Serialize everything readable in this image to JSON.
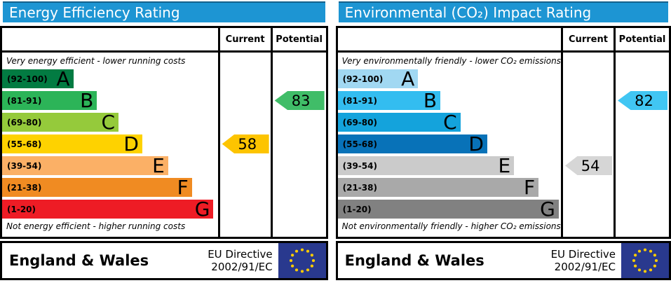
{
  "colors": {
    "header_bar": "#1d95d3",
    "border": "#000000",
    "eu_flag_blue": "#29398e",
    "eu_flag_stars": "#ffcc00"
  },
  "panels": [
    {
      "title": "Energy Efficiency Rating",
      "columns": {
        "current": "Current",
        "potential": "Potential"
      },
      "top_caption": "Very energy efficient - lower running costs",
      "bottom_caption": "Not energy efficient - higher running costs",
      "bands": [
        {
          "range": "(92-100)",
          "letter": "A",
          "width": "33%",
          "color": "#027b42"
        },
        {
          "range": "(81-91)",
          "letter": "B",
          "width": "44%",
          "color": "#2cb458"
        },
        {
          "range": "(69-80)",
          "letter": "C",
          "width": "54%",
          "color": "#95ca3b"
        },
        {
          "range": "(55-68)",
          "letter": "D",
          "width": "65%",
          "color": "#fed200"
        },
        {
          "range": "(39-54)",
          "letter": "E",
          "width": "77%",
          "color": "#fbb066"
        },
        {
          "range": "(21-38)",
          "letter": "F",
          "width": "88%",
          "color": "#f08b22"
        },
        {
          "range": "(1-20)",
          "letter": "G",
          "width": "98%",
          "color": "#ee1c25"
        }
      ],
      "current": {
        "value": "58",
        "band_index": 3,
        "color": "#fdc400"
      },
      "potential": {
        "value": "83",
        "band_index": 1,
        "color": "#40bd68"
      },
      "footer": {
        "region": "England & Wales",
        "directive_line1": "EU Directive",
        "directive_line2": "2002/91/EC"
      }
    },
    {
      "title": "Environmental (CO₂) Impact Rating",
      "columns": {
        "current": "Current",
        "potential": "Potential"
      },
      "top_caption": "Very environmentally friendly - lower CO₂ emissions",
      "bottom_caption": "Not environmentally friendly - higher CO₂ emissions",
      "bands": [
        {
          "range": "(92-100)",
          "letter": "A",
          "width": "36%",
          "color": "#a1d8f2"
        },
        {
          "range": "(81-91)",
          "letter": "B",
          "width": "46%",
          "color": "#33bdf0"
        },
        {
          "range": "(69-80)",
          "letter": "C",
          "width": "55%",
          "color": "#14a3dc"
        },
        {
          "range": "(55-68)",
          "letter": "D",
          "width": "67%",
          "color": "#0872b8"
        },
        {
          "range": "(39-54)",
          "letter": "E",
          "width": "79%",
          "color": "#cbcbcb"
        },
        {
          "range": "(21-38)",
          "letter": "F",
          "width": "90%",
          "color": "#a9a9a9"
        },
        {
          "range": "(1-20)",
          "letter": "G",
          "width": "99%",
          "color": "#818181"
        }
      ],
      "current": {
        "value": "54",
        "band_index": 4,
        "color": "#d6d6d6"
      },
      "potential": {
        "value": "82",
        "band_index": 1,
        "color": "#41c6f3"
      },
      "footer": {
        "region": "England & Wales",
        "directive_line1": "EU Directive",
        "directive_line2": "2002/91/EC"
      }
    }
  ],
  "chart_data": [
    {
      "type": "bar",
      "title": "Energy Efficiency Rating",
      "categories": [
        "A",
        "B",
        "C",
        "D",
        "E",
        "F",
        "G"
      ],
      "band_ranges": [
        "92-100",
        "81-91",
        "69-80",
        "55-68",
        "39-54",
        "21-38",
        "1-20"
      ],
      "band_colors": [
        "#027b42",
        "#2cb458",
        "#95ca3b",
        "#fed200",
        "#fbb066",
        "#f08b22",
        "#ee1c25"
      ],
      "bar_width_pct": [
        33,
        44,
        54,
        65,
        77,
        88,
        98
      ],
      "current": 58,
      "current_band": "D",
      "potential": 83,
      "potential_band": "B",
      "top_annotation": "Very energy efficient - lower running costs",
      "bottom_annotation": "Not energy efficient - higher running costs",
      "footer_region": "England & Wales",
      "footer_directive": "EU Directive 2002/91/EC",
      "legend_position": "none",
      "grid": false
    },
    {
      "type": "bar",
      "title": "Environmental (CO₂) Impact Rating",
      "categories": [
        "A",
        "B",
        "C",
        "D",
        "E",
        "F",
        "G"
      ],
      "band_ranges": [
        "92-100",
        "81-91",
        "69-80",
        "55-68",
        "39-54",
        "21-38",
        "1-20"
      ],
      "band_colors": [
        "#a1d8f2",
        "#33bdf0",
        "#14a3dc",
        "#0872b8",
        "#cbcbcb",
        "#a9a9a9",
        "#818181"
      ],
      "bar_width_pct": [
        36,
        46,
        55,
        67,
        79,
        90,
        99
      ],
      "current": 54,
      "current_band": "E",
      "potential": 82,
      "potential_band": "B",
      "top_annotation": "Very environmentally friendly - lower CO₂ emissions",
      "bottom_annotation": "Not environmentally friendly - higher CO₂ emissions",
      "footer_region": "England & Wales",
      "footer_directive": "EU Directive 2002/91/EC",
      "legend_position": "none",
      "grid": false
    }
  ]
}
